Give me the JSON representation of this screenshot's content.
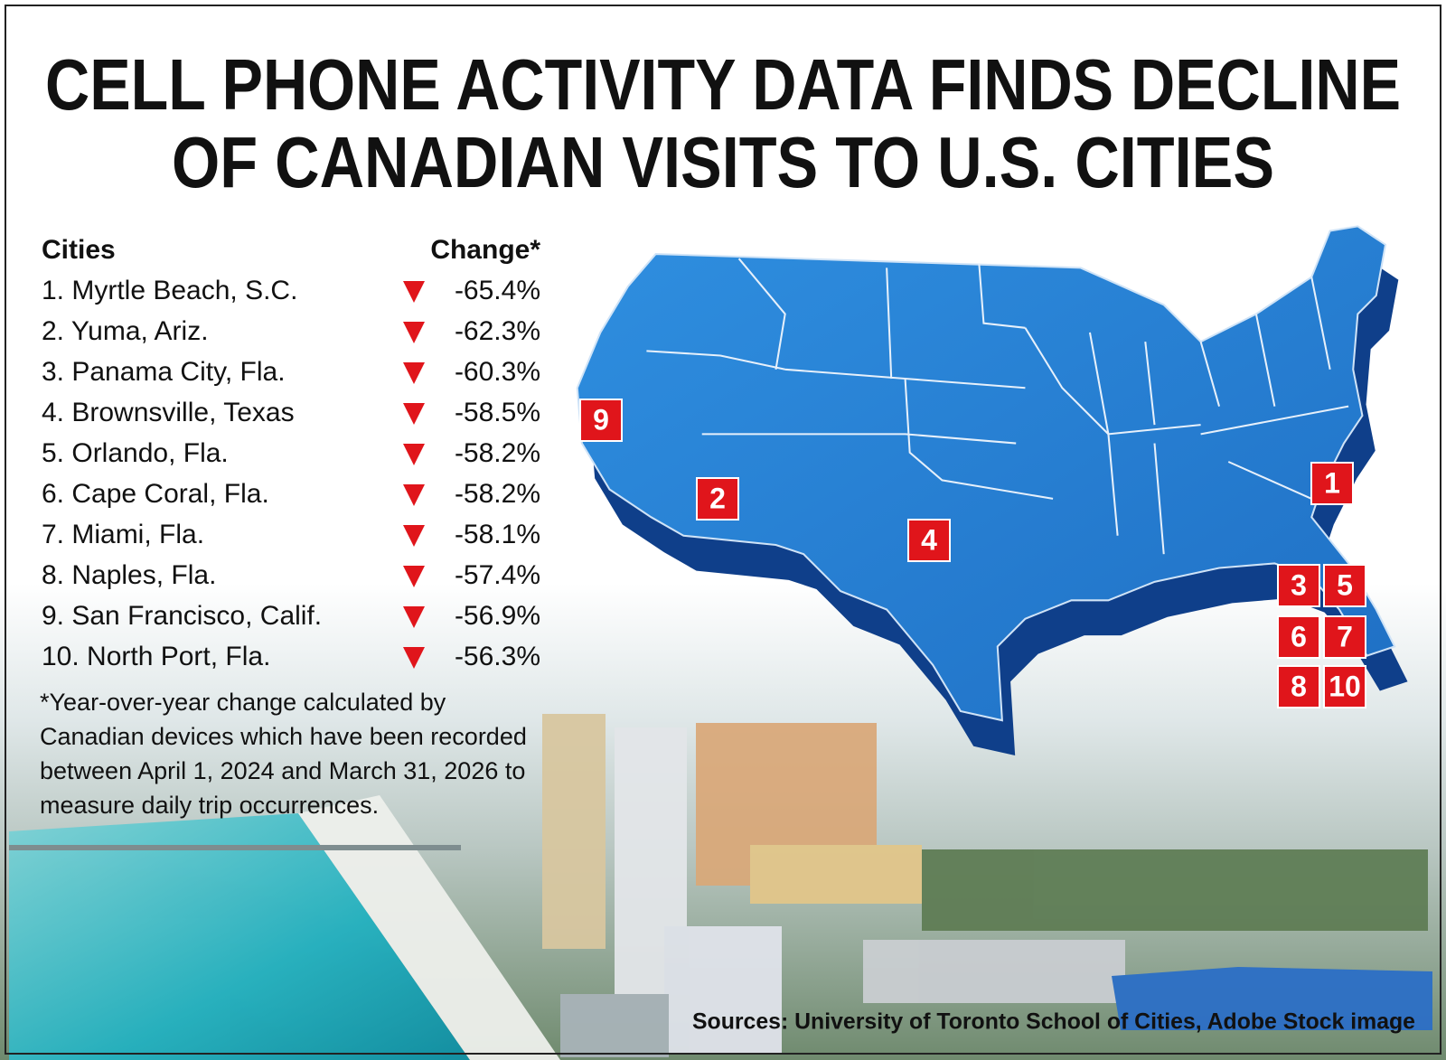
{
  "header": {
    "title_lines": [
      "CELL PHONE ACTIVITY DATA FINDS DECLINE",
      "OF CANADIAN VISITS TO U.S. CITIES"
    ]
  },
  "table": {
    "headers": [
      "Cities",
      "Change*"
    ],
    "rows": [
      [
        "1. Myrtle Beach, S.C.",
        "-65.4%"
      ],
      [
        "2. Yuma, Ariz.",
        "-62.3%"
      ],
      [
        "3. Panama City, Fla.",
        "-60.3%"
      ],
      [
        "4. Brownsville, Texas",
        "-58.5%"
      ],
      [
        "5. Orlando, Fla.",
        "-58.2%"
      ],
      [
        "6. Cape Coral, Fla.",
        "-58.2%"
      ],
      [
        "7. Miami, Fla.",
        "-58.1%"
      ],
      [
        "8. Naples, Fla.",
        "-57.4%"
      ],
      [
        "9. San Francisco, Calif.",
        "-56.9%"
      ],
      [
        "10. North Port, Fla.",
        "-56.3%"
      ]
    ]
  },
  "footnote_lines": [
    "*Year-over-year change calculated by",
    "Canadian devices which have been recorded",
    "between April 1, 2024 and March 31, 2026 to",
    "measure daily trip occurrences."
  ],
  "map": {
    "markers": [
      "9",
      "2",
      "4",
      "1",
      "3",
      "5",
      "6",
      "7",
      "8",
      "10"
    ]
  },
  "sources": "Sources: University of Toronto School of Cities, Adobe Stock image"
}
